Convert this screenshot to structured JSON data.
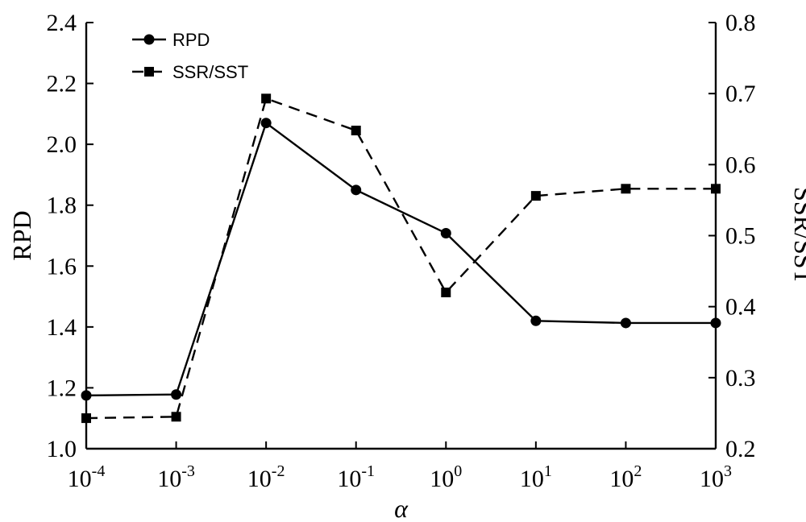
{
  "chart_data": {
    "type": "line",
    "x": [
      "10^-4",
      "10^-3",
      "10^-2",
      "10^-1",
      "10^0",
      "10^1",
      "10^2",
      "10^3"
    ],
    "x_ticks": [
      {
        "base": "10",
        "exp": "-4"
      },
      {
        "base": "10",
        "exp": "-3"
      },
      {
        "base": "10",
        "exp": "-2"
      },
      {
        "base": "10",
        "exp": "-1"
      },
      {
        "base": "10",
        "exp": "0"
      },
      {
        "base": "10",
        "exp": "1"
      },
      {
        "base": "10",
        "exp": "2"
      },
      {
        "base": "10",
        "exp": "3"
      }
    ],
    "xlabel": "α",
    "xscale": "log",
    "left_axis": {
      "label": "RPD",
      "ylim": [
        1.0,
        2.4
      ],
      "ticks": [
        "1.0",
        "1.2",
        "1.4",
        "1.6",
        "1.8",
        "2.0",
        "2.2",
        "2.4"
      ]
    },
    "right_axis": {
      "label": "SSR/SST",
      "ylim": [
        0.2,
        0.8
      ],
      "ticks": [
        "0.2",
        "0.3",
        "0.4",
        "0.5",
        "0.6",
        "0.7",
        "0.8"
      ]
    },
    "series": [
      {
        "name": "RPD",
        "axis": "left",
        "marker": "circle",
        "line": "solid",
        "values": [
          1.175,
          1.178,
          2.07,
          1.85,
          1.708,
          1.42,
          1.413,
          1.413
        ]
      },
      {
        "name": "SSR/SST",
        "axis": "right",
        "marker": "square",
        "line": "dashed",
        "values": [
          0.243,
          0.245,
          0.693,
          0.648,
          0.42,
          0.556,
          0.566,
          0.566
        ]
      }
    ],
    "legend_position": "top-left",
    "grid": false
  }
}
